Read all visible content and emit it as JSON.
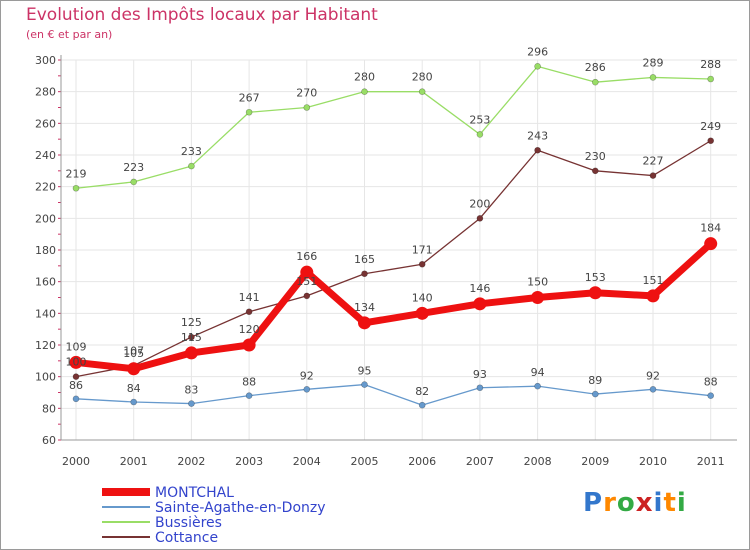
{
  "title": "Evolution des Impôts locaux par Habitant",
  "subtitle": "(en € et par an)",
  "logo": {
    "text": "Proxiti",
    "letters": [
      "P",
      "r",
      "o",
      "x",
      "i",
      "t",
      "i"
    ],
    "colors": [
      "#3377cc",
      "#ff8800",
      "#33aa44",
      "#cc2222",
      "#3377cc",
      "#ff8800",
      "#33aa44"
    ]
  },
  "chart_data": {
    "type": "line",
    "x": [
      "2000",
      "2001",
      "2002",
      "2003",
      "2004",
      "2005",
      "2006",
      "2007",
      "2008",
      "2009",
      "2010",
      "2011"
    ],
    "ylim": [
      60,
      300
    ],
    "yticks": [
      60,
      80,
      100,
      120,
      140,
      160,
      180,
      200,
      220,
      240,
      260,
      280,
      300
    ],
    "grid": true,
    "legend_position": "bottom-left",
    "series": [
      {
        "name": "Bussières",
        "color": "#99dd66",
        "values": [
          219,
          223,
          233,
          267,
          270,
          280,
          280,
          253,
          296,
          286,
          289,
          288
        ]
      },
      {
        "name": "Cottance",
        "color": "#773333",
        "values": [
          100,
          107,
          125,
          141,
          151,
          165,
          171,
          200,
          243,
          230,
          227,
          249
        ]
      },
      {
        "name": "Sainte-Agathe-en-Donzy",
        "color": "#6699cc",
        "values": [
          86,
          84,
          83,
          88,
          92,
          95,
          82,
          93,
          94,
          89,
          92,
          88
        ]
      },
      {
        "name": "MONTCHAL",
        "color": "#ee1111",
        "values": [
          109,
          105,
          115,
          120,
          166,
          134,
          140,
          146,
          150,
          153,
          151,
          184
        ]
      }
    ],
    "legend_order": [
      "MONTCHAL",
      "Sainte-Agathe-en-Donzy",
      "Bussières",
      "Cottance"
    ]
  }
}
